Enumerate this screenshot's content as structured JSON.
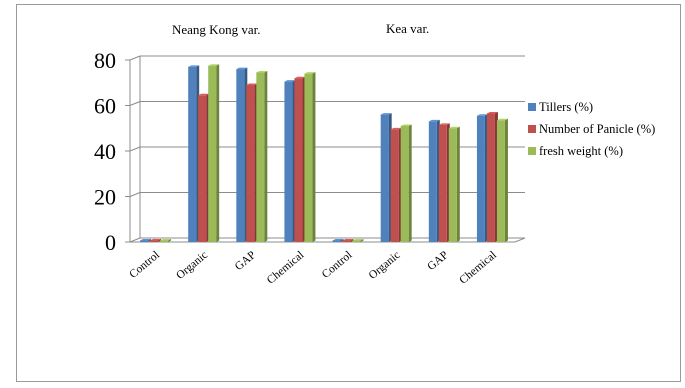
{
  "chart_data": {
    "type": "bar",
    "title": "",
    "xlabel": "",
    "ylabel": "",
    "ylim": [
      0,
      80
    ],
    "yticks": [
      0,
      20,
      40,
      60,
      80
    ],
    "grid": true,
    "legend_position": "right",
    "group_titles": [
      "Neang Kong var.",
      "Kea var."
    ],
    "categories": [
      "Control",
      "Organic",
      "GAP",
      "Chemical",
      "Control",
      "Organic",
      "GAP",
      "Chemical"
    ],
    "series": [
      {
        "name": "Tillers (%)",
        "color": "#4f81bd",
        "values": [
          0,
          77,
          76,
          70.5,
          0,
          56,
          53,
          55.5
        ]
      },
      {
        "name": "Number of Panicle (%)",
        "color": "#c0504d",
        "values": [
          0,
          64.5,
          69,
          72,
          0,
          49.5,
          51.5,
          56.5
        ]
      },
      {
        "name": "fresh weight  (%)",
        "color": "#9bbb59",
        "values": [
          0,
          77.5,
          74.5,
          74,
          0,
          51,
          50,
          53.5
        ]
      }
    ]
  }
}
